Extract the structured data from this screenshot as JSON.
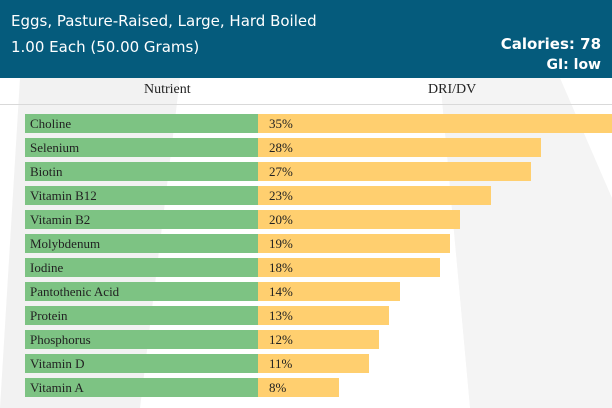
{
  "header": {
    "title": "Eggs, Pasture-Raised, Large, Hard Boiled",
    "serving": "1.00 Each (50.00 Grams)",
    "calories": "Calories: 78",
    "gi": "GI: low"
  },
  "colors": {
    "header_bg": "#055b7c",
    "nutrient_cell": "#7dc383",
    "dri_bar": "#ffcf6f"
  },
  "chart_data": {
    "type": "bar",
    "orientation": "horizontal",
    "xlabel": "DRI/DV",
    "ylabel": "Nutrient",
    "xlim": [
      0,
      35
    ],
    "categories": [
      "Choline",
      "Selenium",
      "Biotin",
      "Vitamin B12",
      "Vitamin B2",
      "Molybdenum",
      "Iodine",
      "Pantothenic Acid",
      "Protein",
      "Phosphorus",
      "Vitamin D",
      "Vitamin A"
    ],
    "values": [
      35,
      28,
      27,
      23,
      20,
      19,
      18,
      14,
      13,
      12,
      11,
      8
    ],
    "value_labels": [
      "35%",
      "28%",
      "27%",
      "23%",
      "20%",
      "19%",
      "18%",
      "14%",
      "13%",
      "12%",
      "11%",
      "8%"
    ]
  }
}
